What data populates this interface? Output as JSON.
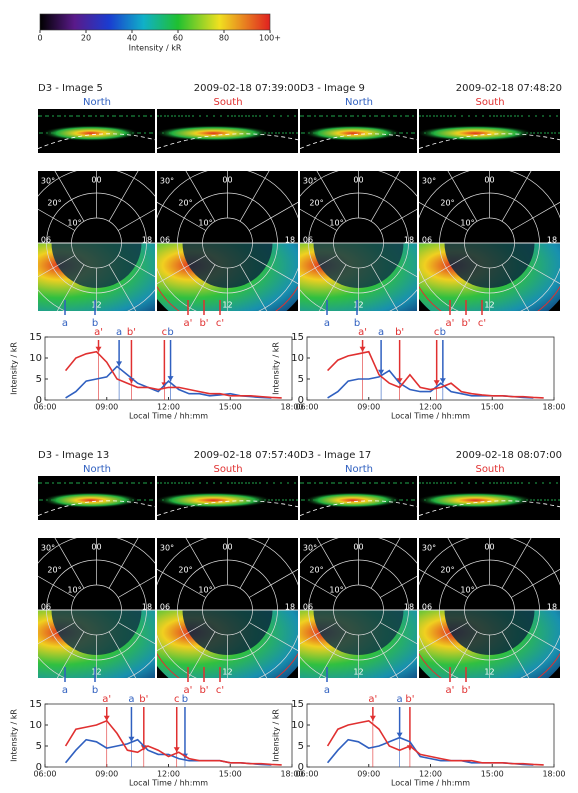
{
  "colorbar": {
    "label": "Intensity / kR",
    "lim": [
      0,
      100
    ],
    "ticks": [
      0,
      20,
      40,
      60,
      80,
      {
        "value": 100,
        "label": "100+"
      }
    ]
  },
  "polar_labels": {
    "lt": [
      "00",
      "06",
      "12",
      "18"
    ],
    "lat": [
      "10°",
      "20°",
      "30°"
    ]
  },
  "chart_data": [
    {
      "type": "line",
      "title": "D3 - Image 5",
      "timestamp": "2009-02-18 07:39:00",
      "hemispheres": [
        "North",
        "South"
      ],
      "image_labels_north": [
        "a",
        "b"
      ],
      "image_labels_south": [
        "a'",
        "b'",
        "c'"
      ],
      "xlabel": "Local Time / hh:mm",
      "ylabel": "Intensity / kR",
      "xlim": [
        6,
        18
      ],
      "xticks": [
        {
          "value": 6,
          "label": "06:00"
        },
        {
          "value": 9,
          "label": "09:00"
        },
        {
          "value": 12,
          "label": "12:00"
        },
        {
          "value": 15,
          "label": "15:00"
        },
        {
          "value": 18,
          "label": "18:00"
        }
      ],
      "ylim": [
        0,
        15
      ],
      "yticks": [
        0,
        5,
        10,
        15
      ],
      "x": [
        7,
        7.5,
        8,
        8.5,
        9,
        9.5,
        10,
        10.5,
        11,
        11.5,
        12,
        12.5,
        13,
        13.5,
        14,
        14.5,
        15,
        15.5,
        16,
        16.5,
        17,
        17.5
      ],
      "series": [
        {
          "name": "North",
          "color": "#3060c0",
          "values": [
            0.5,
            2,
            4.5,
            5,
            5.5,
            8,
            6,
            4,
            3,
            2,
            4.5,
            2.5,
            1.5,
            1.5,
            1,
            1.2,
            1.5,
            1,
            0.8,
            0.6,
            0.5,
            null
          ]
        },
        {
          "name": "South",
          "color": "#e03030",
          "values": [
            7,
            10,
            11,
            11.5,
            9,
            5,
            4,
            3,
            3,
            2.5,
            3,
            3,
            2.5,
            2,
            1.5,
            1.5,
            1,
            1,
            1,
            0.8,
            0.6,
            0.5
          ]
        }
      ],
      "markers": [
        {
          "text": "a'",
          "x": 8.6,
          "y": 11.5,
          "color": "#e03030"
        },
        {
          "text": "a",
          "x": 9.6,
          "y": 8,
          "color": "#3060c0"
        },
        {
          "text": "b'",
          "x": 10.2,
          "y": 4,
          "color": "#e03030"
        },
        {
          "text": "c",
          "x": 11.8,
          "y": 3,
          "color": "#e03030"
        },
        {
          "text": "b",
          "x": 12.1,
          "y": 4.5,
          "color": "#3060c0"
        }
      ]
    },
    {
      "type": "line",
      "title": "D3 - Image 9",
      "timestamp": "2009-02-18 07:48:20",
      "hemispheres": [
        "North",
        "South"
      ],
      "image_labels_north": [
        "a",
        "b"
      ],
      "image_labels_south": [
        "a'",
        "b'",
        "c'"
      ],
      "xlabel": "Local Time / hh:mm",
      "ylabel": "Intensity / kR",
      "xlim": [
        6,
        18
      ],
      "xticks": [
        {
          "value": 6,
          "label": "06:00"
        },
        {
          "value": 9,
          "label": "09:00"
        },
        {
          "value": 12,
          "label": "12:00"
        },
        {
          "value": 15,
          "label": "15:00"
        },
        {
          "value": 18,
          "label": "18:00"
        }
      ],
      "ylim": [
        0,
        15
      ],
      "yticks": [
        0,
        5,
        10,
        15
      ],
      "x": [
        7,
        7.5,
        8,
        8.5,
        9,
        9.5,
        10,
        10.5,
        11,
        11.5,
        12,
        12.5,
        13,
        13.5,
        14,
        14.5,
        15,
        15.5,
        16,
        16.5,
        17,
        17.5
      ],
      "series": [
        {
          "name": "North",
          "color": "#3060c0",
          "values": [
            0.5,
            2,
            4.5,
            5,
            5,
            5.5,
            7,
            4,
            2.5,
            2,
            2,
            4,
            2,
            1.5,
            1,
            1,
            1,
            1,
            0.8,
            0.6,
            0.5,
            null
          ]
        },
        {
          "name": "South",
          "color": "#e03030",
          "values": [
            7,
            9.5,
            10.5,
            11,
            11.5,
            6,
            4,
            3,
            6,
            3,
            2.5,
            3,
            4,
            2,
            1.5,
            1.2,
            1,
            1,
            0.8,
            0.8,
            0.6,
            0.5
          ]
        }
      ],
      "markers": [
        {
          "text": "a'",
          "x": 8.7,
          "y": 11.5,
          "color": "#e03030"
        },
        {
          "text": "a",
          "x": 9.6,
          "y": 6,
          "color": "#3060c0"
        },
        {
          "text": "b'",
          "x": 10.5,
          "y": 4,
          "color": "#e03030"
        },
        {
          "text": "c",
          "x": 12.3,
          "y": 3.5,
          "color": "#e03030"
        },
        {
          "text": "b",
          "x": 12.6,
          "y": 4,
          "color": "#3060c0"
        }
      ]
    },
    {
      "type": "line",
      "title": "D3 - Image 13",
      "timestamp": "2009-02-18 07:57:40",
      "hemispheres": [
        "North",
        "South"
      ],
      "image_labels_north": [
        "a",
        "b"
      ],
      "image_labels_south": [
        "a'",
        "b'",
        "c'"
      ],
      "xlabel": "Local Time / hh:mm",
      "ylabel": "Intensity / kR",
      "xlim": [
        6,
        18
      ],
      "xticks": [
        {
          "value": 6,
          "label": "06:00"
        },
        {
          "value": 9,
          "label": "09:00"
        },
        {
          "value": 12,
          "label": "12:00"
        },
        {
          "value": 15,
          "label": "15:00"
        },
        {
          "value": 18,
          "label": "18:00"
        }
      ],
      "ylim": [
        0,
        15
      ],
      "yticks": [
        0,
        5,
        10,
        15
      ],
      "x": [
        7,
        7.5,
        8,
        8.5,
        9,
        9.5,
        10,
        10.5,
        11,
        11.5,
        12,
        12.5,
        13,
        13.5,
        14,
        14.5,
        15,
        15.5,
        16,
        16.5,
        17,
        17.5
      ],
      "series": [
        {
          "name": "North",
          "color": "#3060c0",
          "values": [
            1,
            4,
            6.5,
            6,
            4.5,
            5,
            5.5,
            6.5,
            4,
            3,
            3,
            2,
            1.5,
            1.5,
            1.5,
            1.5,
            1,
            1,
            0.8,
            0.6,
            0.5,
            null
          ]
        },
        {
          "name": "South",
          "color": "#e03030",
          "values": [
            5,
            9,
            9.5,
            10,
            11,
            8,
            4,
            3.5,
            5,
            4,
            2.5,
            3.5,
            2,
            1.5,
            1.5,
            1.5,
            1,
            1,
            0.8,
            0.8,
            0.6,
            0.5
          ]
        }
      ],
      "markers": [
        {
          "text": "a'",
          "x": 9,
          "y": 11,
          "color": "#e03030"
        },
        {
          "text": "a",
          "x": 10.2,
          "y": 6,
          "color": "#3060c0"
        },
        {
          "text": "b'",
          "x": 10.8,
          "y": 4,
          "color": "#e03030"
        },
        {
          "text": "c",
          "x": 12.4,
          "y": 3.5,
          "color": "#e03030"
        },
        {
          "text": "b",
          "x": 12.8,
          "y": 2,
          "color": "#3060c0"
        }
      ]
    },
    {
      "type": "line",
      "title": "D3 - Image 17",
      "timestamp": "2009-02-18 08:07:00",
      "hemispheres": [
        "North",
        "South"
      ],
      "image_labels_north": [
        "a"
      ],
      "image_labels_south": [
        "a'",
        "b'"
      ],
      "xlabel": "Local Time / hh:mm",
      "ylabel": "Intensity / kR",
      "xlim": [
        6,
        18
      ],
      "xticks": [
        {
          "value": 6,
          "label": "06:00"
        },
        {
          "value": 9,
          "label": "09:00"
        },
        {
          "value": 12,
          "label": "12:00"
        },
        {
          "value": 15,
          "label": "15:00"
        },
        {
          "value": 18,
          "label": "18:00"
        }
      ],
      "ylim": [
        0,
        15
      ],
      "yticks": [
        0,
        5,
        10,
        15
      ],
      "x": [
        7,
        7.5,
        8,
        8.5,
        9,
        9.5,
        10,
        10.5,
        11,
        11.5,
        12,
        12.5,
        13,
        13.5,
        14,
        14.5,
        15,
        15.5,
        16,
        16.5,
        17,
        17.5
      ],
      "series": [
        {
          "name": "North",
          "color": "#3060c0",
          "values": [
            1,
            4,
            6.5,
            6,
            4.5,
            5,
            6,
            7,
            6,
            2.5,
            2,
            1.5,
            1.5,
            1.5,
            1,
            1,
            1,
            1,
            0.8,
            0.6,
            0.5,
            null
          ]
        },
        {
          "name": "South",
          "color": "#e03030",
          "values": [
            5,
            9,
            10,
            10.5,
            11,
            9,
            5,
            4,
            5,
            3,
            2.5,
            2,
            1.5,
            1.5,
            1.5,
            1,
            1,
            1,
            0.8,
            0.8,
            0.6,
            0.5
          ]
        }
      ],
      "markers": [
        {
          "text": "a'",
          "x": 9.2,
          "y": 11,
          "color": "#e03030"
        },
        {
          "text": "a",
          "x": 10.5,
          "y": 7,
          "color": "#3060c0"
        },
        {
          "text": "b'",
          "x": 11,
          "y": 4,
          "color": "#e03030"
        }
      ]
    }
  ]
}
